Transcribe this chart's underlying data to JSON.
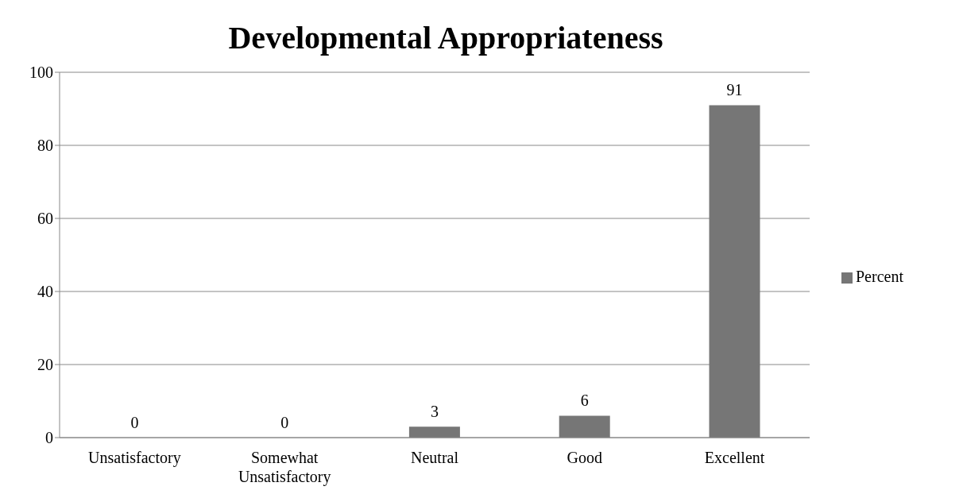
{
  "chart_data": {
    "type": "bar",
    "title": "Developmental Appropriateness",
    "categories": [
      "Unsatisfactory",
      "Somewhat Unsatisfactory",
      "Neutral",
      "Good",
      "Excellent"
    ],
    "series": [
      {
        "name": "Percent",
        "color": "#767676",
        "values": [
          0,
          0,
          3,
          6,
          91
        ]
      }
    ],
    "ylim": [
      0,
      100
    ],
    "yticks": [
      0,
      20,
      40,
      60,
      80,
      100
    ],
    "grid": "y",
    "legend": "right",
    "data_labels": true
  }
}
